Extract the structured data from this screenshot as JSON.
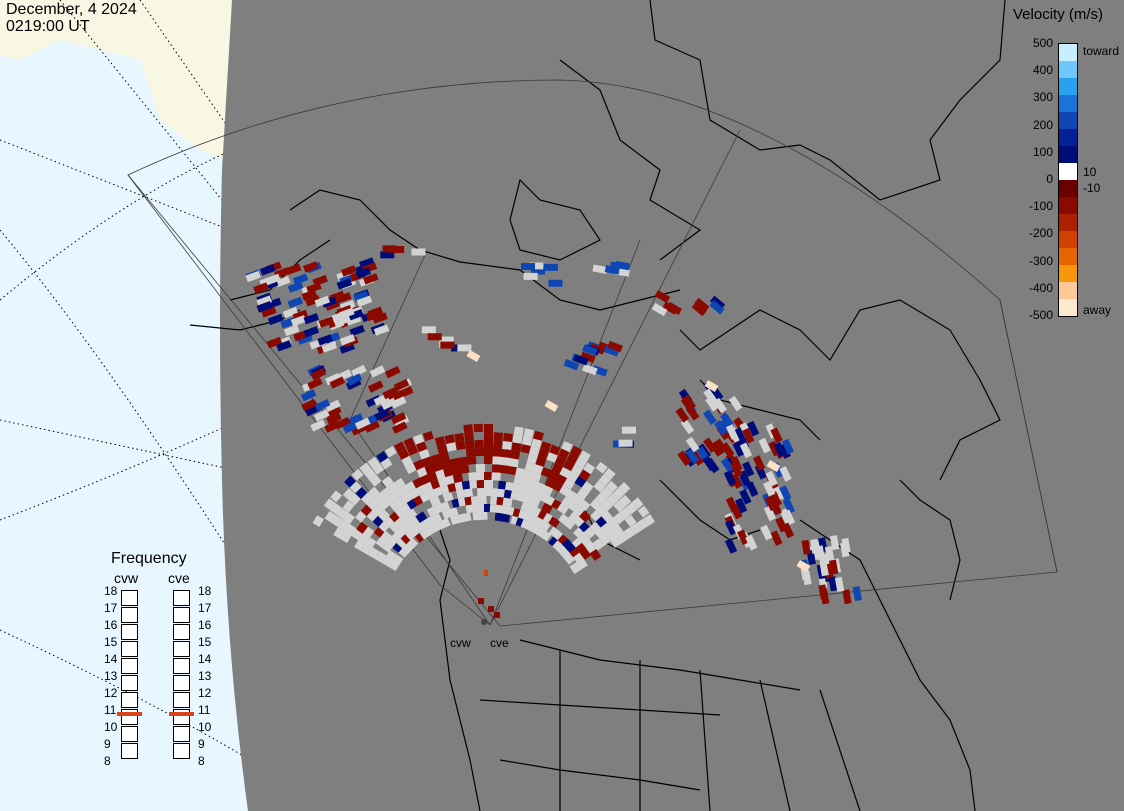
{
  "header": {
    "date": "December, 4 2024",
    "time": "0219:00 UT"
  },
  "colorbar": {
    "title": "Velocity (m/s)",
    "ticks": [
      "500",
      "400",
      "300",
      "200",
      "100",
      "0",
      "-100",
      "-200",
      "-300",
      "-400",
      "-500"
    ],
    "label_toward": "toward",
    "label_away": "away",
    "label_pos_threshold": "10",
    "label_neg_threshold": "-10",
    "colors": [
      "#c8eeff",
      "#6ec8ff",
      "#2aa0f0",
      "#1a74d8",
      "#0f46b4",
      "#062096",
      "#000c78",
      "#ffffff",
      "#6a0000",
      "#8a0a02",
      "#b02000",
      "#d04000",
      "#e86400",
      "#f8960c",
      "#ffc896",
      "#fde8d0"
    ]
  },
  "frequency": {
    "title": "Frequency",
    "radars": [
      {
        "name": "cvw",
        "value_mhz": 10.9
      },
      {
        "name": "cve",
        "value_mhz": 10.9
      }
    ],
    "scale": [
      "18",
      "17",
      "16",
      "15",
      "14",
      "13",
      "12",
      "11",
      "10",
      "9",
      "8"
    ],
    "marker_color": "#d9441c"
  },
  "map": {
    "background_color": "#7f7f7f",
    "ocean_color": "#e8f6ff",
    "ice_color": "#f8f7e4",
    "radar_labels": [
      "cvw",
      "cve"
    ],
    "palette": {
      "toward_strong": "#000c78",
      "toward_mid": "#0f46b4",
      "toward_light": "#1a74d8",
      "away_strong": "#8a0a02",
      "away_light": "#fde0c4",
      "ground_scatter": "#d3d3d3"
    }
  }
}
